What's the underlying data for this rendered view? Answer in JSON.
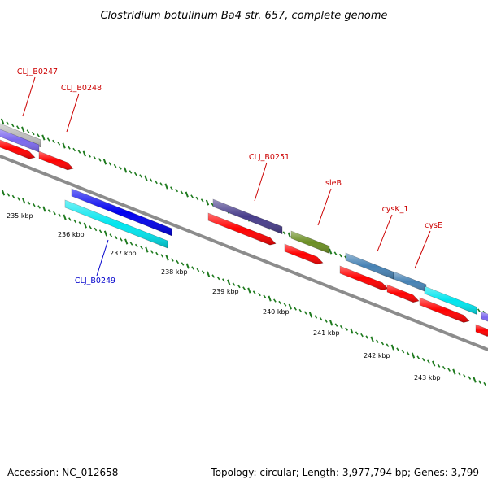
{
  "title": "Clostridium botulinum Ba4 str. 657, complete genome",
  "footer": {
    "accession": "Accession: NC_012658",
    "summary": "Topology: circular; Length: 3,977,794 bp; Genes: 3,799"
  },
  "colors": {
    "backbone": "#8c8c8c",
    "tick": "#1e7a1e",
    "label_red": "#cc0000",
    "label_blue": "#0000cc",
    "cds_red": "#ff0000",
    "gene_blue": "#0000ee",
    "gene_cyan": "#00e5ee",
    "gene_slate": "#483d8b",
    "gene_olive": "#6b8e23",
    "gene_steel": "#4682b4",
    "gene_gray": "#bdbdbd",
    "gene_purple": "#7b68ee"
  },
  "kbp_labels": [
    "235 kbp",
    "236 kbp",
    "237 kbp",
    "238 kbp",
    "239 kbp",
    "240 kbp",
    "241 kbp",
    "242 kbp",
    "243 kbp"
  ],
  "gene_labels": [
    {
      "text": "CLJ_B0247",
      "color": "red"
    },
    {
      "text": "CLJ_B0248",
      "color": "red"
    },
    {
      "text": "CLJ_B0249",
      "color": "blue"
    },
    {
      "text": "CLJ_B0251",
      "color": "red"
    },
    {
      "text": "sleB",
      "color": "red"
    },
    {
      "text": "cysK_1",
      "color": "red"
    },
    {
      "text": "cysE",
      "color": "red"
    }
  ]
}
